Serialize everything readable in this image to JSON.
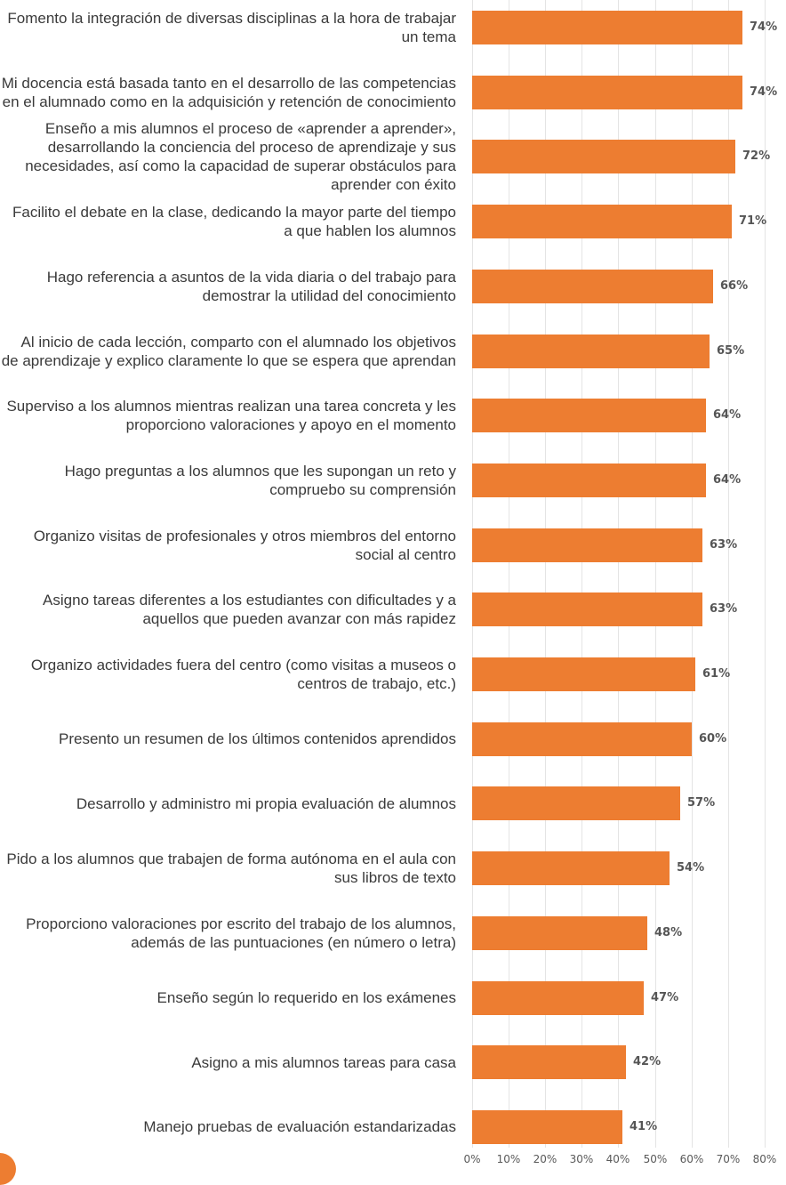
{
  "chart_data": {
    "type": "bar",
    "orientation": "horizontal",
    "title": "",
    "xlabel": "",
    "ylabel": "",
    "xlim": [
      0,
      80
    ],
    "x_ticks": [
      "0%",
      "10%",
      "20%",
      "30%",
      "40%",
      "50%",
      "60%",
      "70%",
      "80%"
    ],
    "grid": true,
    "bar_color": "#ED7D31",
    "categories": [
      "Fomento la integración de diversas disciplinas a la hora de trabajar un tema",
      "Mi docencia está basada tanto en el desarrollo de las competencias en el alumnado como en la adquisición y retención de conocimiento",
      "Enseño a mis alumnos el proceso de «aprender a aprender», desarrollando la conciencia del proceso de aprendizaje y sus necesidades, así como la capacidad de superar obstáculos para aprender con éxito",
      "Facilito el debate en la clase, dedicando la mayor parte del tiempo a que hablen los alumnos",
      "Hago referencia a asuntos de la vida diaria o del trabajo para demostrar la utilidad del conocimiento",
      "Al inicio de cada lección, comparto con el alumnado los objetivos de aprendizaje y explico claramente lo que se espera que aprendan",
      "Superviso a los alumnos mientras realizan una tarea concreta y les proporciono valoraciones y apoyo en el momento",
      "Hago preguntas a los alumnos que les supongan un reto y compruebo su comprensión",
      "Organizo visitas de profesionales y otros miembros del entorno social al centro",
      "Asigno tareas diferentes a los estudiantes con dificultades y a aquellos que pueden avanzar con más rapidez",
      "Organizo actividades fuera del centro (como visitas a museos o centros de trabajo, etc.)",
      "Presento un resumen de los últimos contenidos aprendidos",
      "Desarrollo y administro mi propia evaluación de alumnos",
      "Pido a los alumnos que trabajen de forma autónoma en el aula con sus libros de texto",
      "Proporciono valoraciones por escrito del trabajo de los alumnos, además de las puntuaciones (en número o letra)",
      "Enseño según lo requerido en los exámenes",
      "Asigno a mis alumnos tareas para casa",
      "Manejo pruebas de evaluación estandarizadas"
    ],
    "values": [
      74,
      74,
      72,
      71,
      66,
      65,
      64,
      64,
      63,
      63,
      61,
      60,
      57,
      54,
      48,
      47,
      42,
      41
    ],
    "value_labels": [
      "74%",
      "74%",
      "72%",
      "71%",
      "66%",
      "65%",
      "64%",
      "64%",
      "63%",
      "63%",
      "61%",
      "60%",
      "57%",
      "54%",
      "48%",
      "47%",
      "42%",
      "41%"
    ]
  }
}
